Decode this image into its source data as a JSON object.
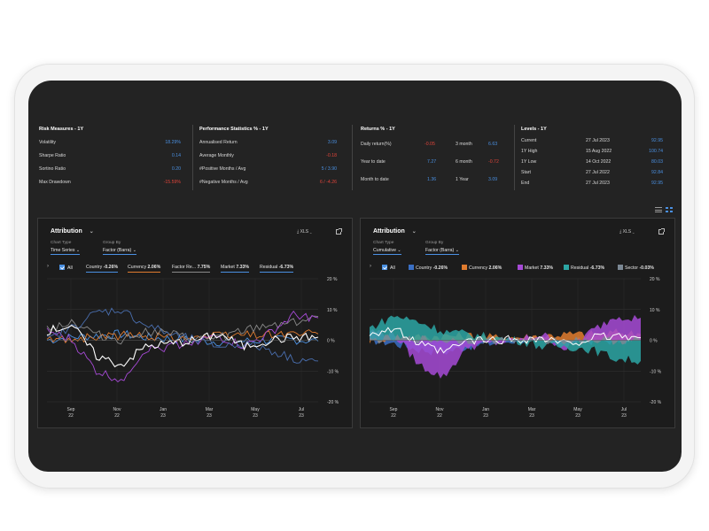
{
  "risk": {
    "title": "Risk Measures - 1Y",
    "rows": [
      {
        "label": "Volatility",
        "value": "18.29%"
      },
      {
        "label": "Sharpe Ratio",
        "value": "0.14"
      },
      {
        "label": "Sortino Ratio",
        "value": "0.20"
      },
      {
        "label": "Max Drawdown",
        "value": "-15.59%"
      }
    ]
  },
  "performance": {
    "title": "Performance Statistics % - 1Y",
    "rows": [
      {
        "label": "Annualised Return",
        "value": "3.09"
      },
      {
        "label": "Average Monthly",
        "value": "-0.18"
      },
      {
        "label": "#Positive Months / Avg",
        "value": "5 / 3.90"
      },
      {
        "label": "#Negative Months / Avg",
        "value": "6 / -4.26"
      }
    ]
  },
  "returns": {
    "title": "Returns % - 1Y",
    "rows": [
      {
        "label": "Daily return(%)",
        "value": "-0.05",
        "label2": "3 month",
        "value2": "6.63"
      },
      {
        "label": "Year to date",
        "value": "7.27",
        "label2": "6 month",
        "value2": "-0.72"
      },
      {
        "label": "Month to date",
        "value": "1.36",
        "label2": "1 Year",
        "value2": "3.09"
      }
    ]
  },
  "levels": {
    "title": "Levels - 1Y",
    "rows": [
      {
        "label": "Current",
        "date": "27 Jul 2023",
        "value": "92.95"
      },
      {
        "label": "1Y High",
        "date": "15 Aug 2022",
        "value": "100.74"
      },
      {
        "label": "1Y Low",
        "date": "14 Oct 2022",
        "value": "80.03"
      },
      {
        "label": "Start",
        "date": "27 Jul 2022",
        "value": "92.84"
      },
      {
        "label": "End",
        "date": "27 Jul 2023",
        "value": "92.95"
      }
    ]
  },
  "panel_left": {
    "title": "Attribution",
    "xls": "XLS",
    "chart_type_label": "Chart Type",
    "chart_type_value": "Time Series",
    "group_by_label": "Group By",
    "group_by_value": "Factor (Barra)",
    "all_label": "All",
    "legend": [
      {
        "name": "Country",
        "value": "-0.26%",
        "color": "#4a90e2"
      },
      {
        "name": "Currency",
        "value": "2.06%",
        "color": "#e07b2e"
      },
      {
        "name": "Factor Re...",
        "value": "7.75%",
        "color": "#8a8a8a"
      },
      {
        "name": "Market",
        "value": "7.33%",
        "color": "#4a90e2"
      },
      {
        "name": "Residual",
        "value": "-6.73%",
        "color": "#4a90e2"
      }
    ]
  },
  "panel_right": {
    "title": "Attribution",
    "xls": "XLS",
    "chart_type_label": "Chart Type",
    "chart_type_value": "Cumulative",
    "group_by_label": "Group By",
    "group_by_value": "Factor (Barra)",
    "all_label": "All",
    "legend": [
      {
        "name": "Country",
        "value": "-0.26%",
        "color": "#3a6fc4"
      },
      {
        "name": "Currency",
        "value": "2.06%",
        "color": "#e07b2e"
      },
      {
        "name": "Market",
        "value": "7.33%",
        "color": "#a64ad6"
      },
      {
        "name": "Residual",
        "value": "-6.73%",
        "color": "#2ca6a4"
      },
      {
        "name": "Sector",
        "value": "-0.03%",
        "color": "#7b8894"
      }
    ]
  },
  "chart_data": [
    {
      "type": "line",
      "y_ticks": [
        "20 %",
        "10 %",
        "0 %",
        "-10 %",
        "-20 %"
      ],
      "ylim": [
        -20,
        20
      ],
      "x_ticks": [
        {
          "m": "Sep",
          "y": "22"
        },
        {
          "m": "Nov",
          "y": "22"
        },
        {
          "m": "Jan",
          "y": "23"
        },
        {
          "m": "Mar",
          "y": "23"
        },
        {
          "m": "May",
          "y": "23"
        },
        {
          "m": "Jul",
          "y": "23"
        }
      ],
      "series": [
        {
          "name": "Country",
          "color": "#4a90e2",
          "values": [
            0,
            1,
            1.5,
            2,
            1,
            0.5,
            0,
            -0.5,
            -0.3,
            0,
            0.2,
            -0.26
          ]
        },
        {
          "name": "Currency",
          "color": "#e07b2e",
          "values": [
            0,
            0.5,
            1,
            1.5,
            1.5,
            1,
            1,
            1.5,
            2,
            2,
            2.2,
            2.06
          ]
        },
        {
          "name": "Factor Re...",
          "color": "#8a8a8a",
          "values": [
            4,
            6,
            2,
            0,
            3,
            2,
            0,
            1,
            3,
            5,
            6,
            7.75
          ]
        },
        {
          "name": "Market",
          "color": "#a64ad6",
          "values": [
            3,
            0,
            -10,
            -13,
            -3,
            -2,
            0,
            1,
            -2,
            2,
            8,
            7.33
          ]
        },
        {
          "name": "Residual",
          "color": "#4a6fb0",
          "values": [
            0,
            4,
            9,
            10,
            5,
            2,
            0,
            -2,
            -1,
            -3,
            -6,
            -6.73
          ]
        },
        {
          "name": "",
          "color": "#ffffff",
          "values": [
            3,
            5,
            -5,
            -8,
            -2,
            -1,
            0,
            2,
            -2,
            0,
            1,
            1
          ]
        }
      ]
    },
    {
      "type": "area",
      "y_ticks": [
        "20 %",
        "10 %",
        "0 %",
        "-10 %",
        "-20 %"
      ],
      "ylim": [
        -20,
        20
      ],
      "x_ticks": [
        {
          "m": "Sep",
          "y": "22"
        },
        {
          "m": "Nov",
          "y": "22"
        },
        {
          "m": "Jan",
          "y": "23"
        },
        {
          "m": "Mar",
          "y": "23"
        },
        {
          "m": "May",
          "y": "23"
        },
        {
          "m": "Jul",
          "y": "23"
        }
      ],
      "series": [
        {
          "name": "Country",
          "color": "#3a6fc4",
          "values": [
            0,
            -1,
            -3,
            -4,
            -2,
            -1,
            0,
            0,
            -0.5,
            -0.3,
            -0.2,
            -0.26
          ]
        },
        {
          "name": "Currency",
          "color": "#e07b2e",
          "values": [
            0,
            1,
            1,
            1.5,
            1.5,
            1,
            1,
            1.5,
            2,
            2,
            2.5,
            2.06
          ]
        },
        {
          "name": "Market",
          "color": "#a64ad6",
          "values": [
            3,
            2,
            -8,
            -12,
            -2,
            -1,
            0,
            2,
            -3,
            3,
            8,
            7.33
          ]
        },
        {
          "name": "Residual",
          "color": "#2ca6a4",
          "values": [
            4,
            8,
            6,
            3,
            2,
            1,
            0,
            -2,
            -2,
            -3,
            -6,
            -6.73
          ]
        },
        {
          "name": "Sector",
          "color": "#7b8894",
          "values": [
            0,
            0.5,
            0.3,
            0,
            0.1,
            0,
            0,
            -0.1,
            0,
            0,
            -0.05,
            -0.03
          ]
        }
      ]
    }
  ]
}
